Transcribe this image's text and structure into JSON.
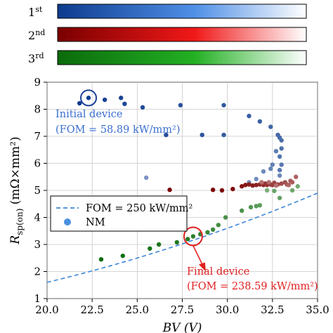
{
  "colorbars": [
    {
      "label": "1",
      "sup": "st",
      "color_start": "#0d3b8e",
      "color_end": "#ffffff"
    },
    {
      "label": "2",
      "sup": "nd",
      "color_start": "#7a0000",
      "color_end": "#ffffff"
    },
    {
      "label": "3",
      "sup": "rd",
      "color_start": "#0b6b0b",
      "color_end": "#ffffff"
    }
  ],
  "chart_data": {
    "type": "scatter",
    "xlabel": "BV (V)",
    "ylabel": "R_sp(on) (mΩ×mm²)",
    "xlim": [
      20.0,
      35.0
    ],
    "ylim": [
      1,
      9
    ],
    "xticks": [
      "20.0",
      "22.5",
      "25.0",
      "27.5",
      "30.0",
      "32.5",
      "35.0"
    ],
    "yticks": [
      "1",
      "2",
      "3",
      "4",
      "5",
      "6",
      "7",
      "8",
      "9"
    ],
    "legend": {
      "placement": "center-left",
      "entries": [
        {
          "label": "FOM = 250 kW/mm²",
          "kind": "dashed-line",
          "color": "#3a86d8"
        },
        {
          "label": "NM",
          "kind": "marker",
          "color": "#4a8fe0"
        }
      ]
    },
    "fom_curve": {
      "fom": 250,
      "color": "#3a86d8"
    },
    "annotations": {
      "initial": {
        "text1": "Initial device",
        "text2": "(FOM = 58.89 kW/mm²)",
        "x": 22.3,
        "y": 8.42,
        "color": "#3a6fd0"
      },
      "final": {
        "text1": "Final device",
        "text2": "(FOM = 238.59 kW/mm²)",
        "x": 28.1,
        "y": 3.3,
        "color": "#e02020"
      }
    },
    "series": [
      {
        "stage": "1st",
        "color_start": "#0d3b8e",
        "color_end": "#ffffff",
        "points": [
          [
            21.8,
            8.22
          ],
          [
            22.3,
            8.42
          ],
          [
            23.2,
            8.35
          ],
          [
            24.1,
            8.42
          ],
          [
            24.3,
            8.2
          ],
          [
            25.3,
            8.07
          ],
          [
            26.6,
            7.05
          ],
          [
            27.4,
            8.15
          ],
          [
            28.6,
            7.05
          ],
          [
            29.8,
            8.15
          ],
          [
            29.8,
            7.05
          ],
          [
            31.2,
            7.75
          ],
          [
            31.8,
            7.55
          ],
          [
            32.4,
            7.35
          ],
          [
            32.8,
            7.05
          ],
          [
            32.9,
            6.95
          ],
          [
            33.0,
            6.85
          ],
          [
            33.0,
            6.55
          ],
          [
            32.9,
            6.25
          ],
          [
            33.0,
            5.95
          ],
          [
            32.9,
            5.75
          ],
          [
            32.7,
            6.45
          ],
          [
            32.5,
            5.95
          ],
          [
            32.4,
            5.8
          ],
          [
            32.9,
            5.55
          ],
          [
            32.0,
            5.7
          ],
          [
            31.6,
            5.42
          ],
          [
            31.2,
            5.3
          ],
          [
            25.5,
            5.47
          ]
        ]
      },
      {
        "stage": "2nd",
        "color_start": "#7a0000",
        "color_end": "#ffffff",
        "points": [
          [
            26.8,
            5.02
          ],
          [
            29.2,
            5.02
          ],
          [
            29.7,
            5.0
          ],
          [
            30.3,
            5.05
          ],
          [
            30.8,
            5.15
          ],
          [
            31.0,
            5.2
          ],
          [
            31.2,
            5.22
          ],
          [
            31.4,
            5.18
          ],
          [
            31.6,
            5.2
          ],
          [
            31.8,
            5.22
          ],
          [
            32.0,
            5.2
          ],
          [
            32.1,
            5.25
          ],
          [
            32.2,
            5.2
          ],
          [
            32.4,
            5.22
          ],
          [
            32.5,
            5.2
          ],
          [
            32.6,
            5.28
          ],
          [
            32.8,
            5.22
          ],
          [
            33.0,
            5.25
          ],
          [
            33.2,
            5.3
          ],
          [
            33.3,
            5.22
          ],
          [
            33.5,
            5.35
          ],
          [
            33.6,
            5.3
          ],
          [
            33.8,
            5.5
          ],
          [
            33.4,
            5.2
          ],
          [
            32.3,
            5.3
          ],
          [
            31.9,
            5.3
          ],
          [
            32.7,
            5.18
          ]
        ]
      },
      {
        "stage": "3rd",
        "color_start": "#0b6b0b",
        "color_end": "#ffffff",
        "points": [
          [
            23.0,
            2.45
          ],
          [
            24.2,
            2.58
          ],
          [
            25.7,
            2.85
          ],
          [
            26.2,
            3.0
          ],
          [
            27.2,
            3.08
          ],
          [
            27.8,
            3.2
          ],
          [
            28.1,
            3.3
          ],
          [
            28.5,
            3.38
          ],
          [
            28.9,
            3.45
          ],
          [
            29.2,
            3.55
          ],
          [
            29.5,
            3.72
          ],
          [
            29.9,
            4.0
          ],
          [
            30.8,
            4.25
          ],
          [
            31.3,
            4.38
          ],
          [
            31.6,
            4.42
          ],
          [
            31.8,
            4.45
          ],
          [
            32.9,
            4.72
          ],
          [
            32.6,
            4.98
          ],
          [
            33.6,
            5.0
          ],
          [
            33.9,
            5.15
          ],
          [
            32.2,
            5.0
          ]
        ]
      }
    ]
  }
}
